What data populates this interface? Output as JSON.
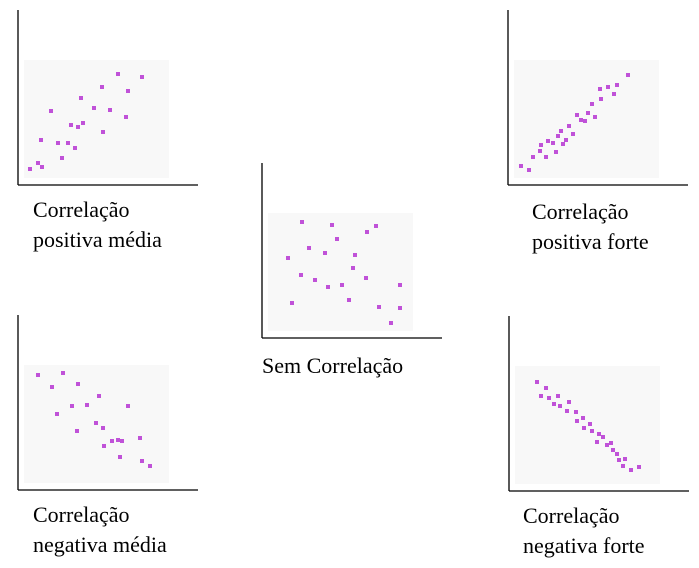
{
  "chart_data": [
    {
      "type": "scatter",
      "title": "Correlação\npositiva média",
      "color": "#c052d8",
      "xlim": [
        0,
        180
      ],
      "ylim": [
        0,
        175
      ],
      "x": [
        12,
        20,
        24,
        23,
        33,
        40,
        44,
        50,
        53,
        57,
        60,
        63,
        65,
        76,
        84,
        85,
        92,
        100,
        108,
        110,
        124
      ],
      "y": [
        16,
        22,
        18,
        45,
        74,
        42,
        27,
        42,
        60,
        37,
        58,
        87,
        62,
        77,
        98,
        53,
        75,
        111,
        68,
        94,
        108
      ]
    },
    {
      "type": "scatter",
      "title": "Correlação\npositiva forte",
      "color": "#c052d8",
      "xlim": [
        0,
        180
      ],
      "ylim": [
        0,
        175
      ],
      "x": [
        13,
        21,
        25,
        32,
        33,
        38,
        40,
        45,
        48,
        50,
        53,
        55,
        58,
        61,
        65,
        69,
        73,
        77,
        80,
        84,
        87,
        92,
        93,
        100,
        106,
        109,
        120
      ],
      "y": [
        19,
        15,
        28,
        34,
        40,
        28,
        44,
        42,
        33,
        49,
        54,
        41,
        45,
        59,
        51,
        70,
        65,
        64,
        72,
        81,
        68,
        96,
        86,
        98,
        91,
        100,
        110
      ]
    },
    {
      "type": "scatter",
      "title": "Sem Correlação",
      "color": "#c052d8",
      "xlim": [
        0,
        180
      ],
      "ylim": [
        0,
        175
      ],
      "x": [
        40,
        70,
        114,
        105,
        75,
        47,
        26,
        63,
        93,
        91,
        39,
        53,
        66,
        80,
        104,
        138,
        30,
        87,
        117,
        138,
        129
      ],
      "y": [
        116,
        113,
        112,
        106,
        99,
        90,
        80,
        85,
        83,
        70,
        63,
        58,
        51,
        53,
        60,
        53,
        35,
        38,
        31,
        30,
        15
      ]
    },
    {
      "type": "scatter",
      "title": "Correlação\nnegativa média",
      "color": "#c052d8",
      "xlim": [
        0,
        180
      ],
      "ylim": [
        0,
        175
      ],
      "x": [
        20,
        34,
        45,
        60,
        54,
        39,
        69,
        81,
        59,
        78,
        85,
        94,
        86,
        100,
        104,
        110,
        122,
        102,
        124,
        132
      ],
      "y": [
        115,
        103,
        117,
        106,
        84,
        76,
        85,
        94,
        59,
        67,
        62,
        49,
        44,
        50,
        49,
        84,
        52,
        33,
        29,
        24
      ]
    },
    {
      "type": "scatter",
      "title": "Correlação\nnegativa forte",
      "color": "#c052d8",
      "xlim": [
        0,
        180
      ],
      "ylim": [
        0,
        175
      ],
      "x": [
        28,
        37,
        32,
        40,
        45,
        49,
        51,
        60,
        58,
        67,
        68,
        74,
        75,
        81,
        83,
        90,
        88,
        94,
        98,
        102,
        104,
        108,
        110,
        116,
        114,
        122,
        130
      ],
      "y": [
        109,
        103,
        95,
        93,
        87,
        95,
        85,
        89,
        80,
        79,
        70,
        73,
        63,
        67,
        60,
        57,
        49,
        54,
        46,
        48,
        41,
        37,
        31,
        32,
        25,
        21,
        24
      ]
    }
  ]
}
